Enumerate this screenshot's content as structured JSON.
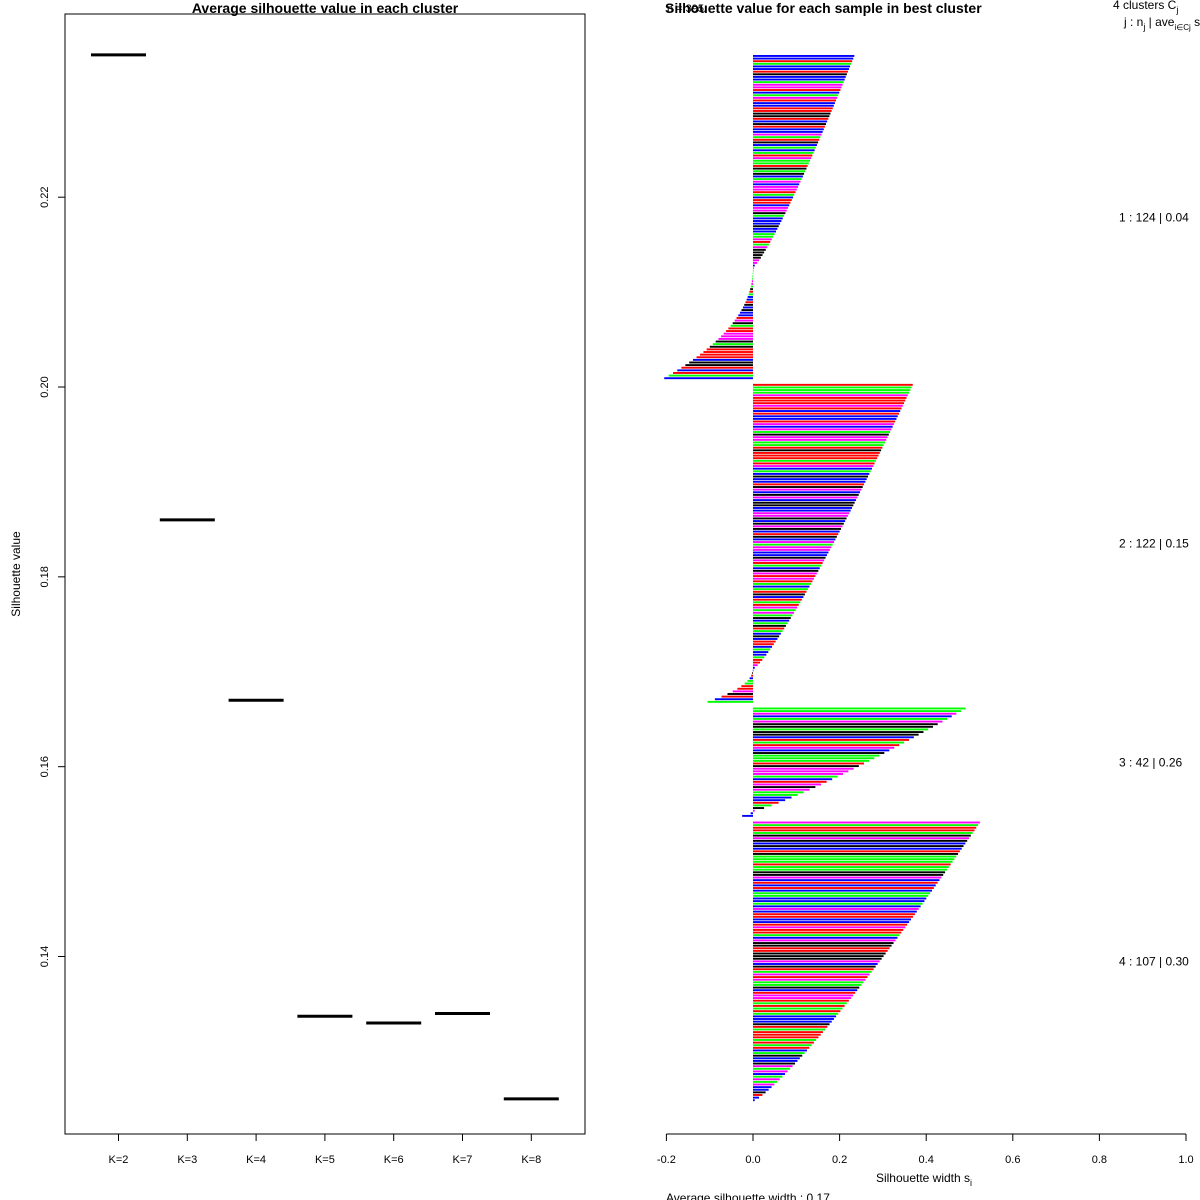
{
  "chart_data": [
    {
      "type": "line",
      "title": "Average silhouette value in each cluster",
      "xlabel": "",
      "ylabel": "Silhouette value",
      "categories": [
        "K=2",
        "K=3",
        "K=4",
        "K=5",
        "K=6",
        "K=7",
        "K=8"
      ],
      "values": [
        0.235,
        0.186,
        0.167,
        0.1337,
        0.133,
        0.134,
        0.125
      ],
      "ylim": [
        0.1213,
        0.2393
      ],
      "yticks": [
        "0.14",
        "0.16",
        "0.18",
        "0.20",
        "0.22"
      ],
      "grid": false
    },
    {
      "type": "bar",
      "orientation": "horizontal",
      "title": "Silhouette value for each sample in best cluster",
      "title_overlap": "n = 395",
      "xlabel": "Silhouette width s",
      "xlabel_sub": "i",
      "xlim": [
        -0.2,
        1.0
      ],
      "xticks": [
        "-0.2",
        "0.0",
        "0.2",
        "0.4",
        "0.6",
        "0.8",
        "1.0"
      ],
      "header_line1": "4  clusters  C",
      "header_line1_sub": "j",
      "header_line2": "j :  n",
      "header_line2_sub": "j",
      "header_line2_rest": " | ave",
      "header_line2_sub2": "i∈Cj",
      "header_line2_end": "  s",
      "footer": "Average silhouette width :  0.17",
      "clusters": [
        {
          "label": "1 :  124  |  0.04",
          "n": 124,
          "avg": 0.04,
          "max": 0.23,
          "min": -0.205,
          "n_negative": 43
        },
        {
          "label": "2 :  122  |  0.15",
          "n": 122,
          "avg": 0.15,
          "max": 0.365,
          "min": -0.105,
          "n_negative": 13
        },
        {
          "label": "3 :  42  |  0.26",
          "n": 42,
          "avg": 0.26,
          "max": 0.487,
          "min": -0.025,
          "n_negative": 2
        },
        {
          "label": "4 :  107  |  0.30",
          "n": 107,
          "avg": 0.3,
          "max": 0.52,
          "min": 0.0,
          "n_negative": 0
        }
      ],
      "bar_colors": [
        "#ff0000",
        "#00ff00",
        "#0000ff",
        "#ff00ff",
        "#000000"
      ]
    }
  ]
}
